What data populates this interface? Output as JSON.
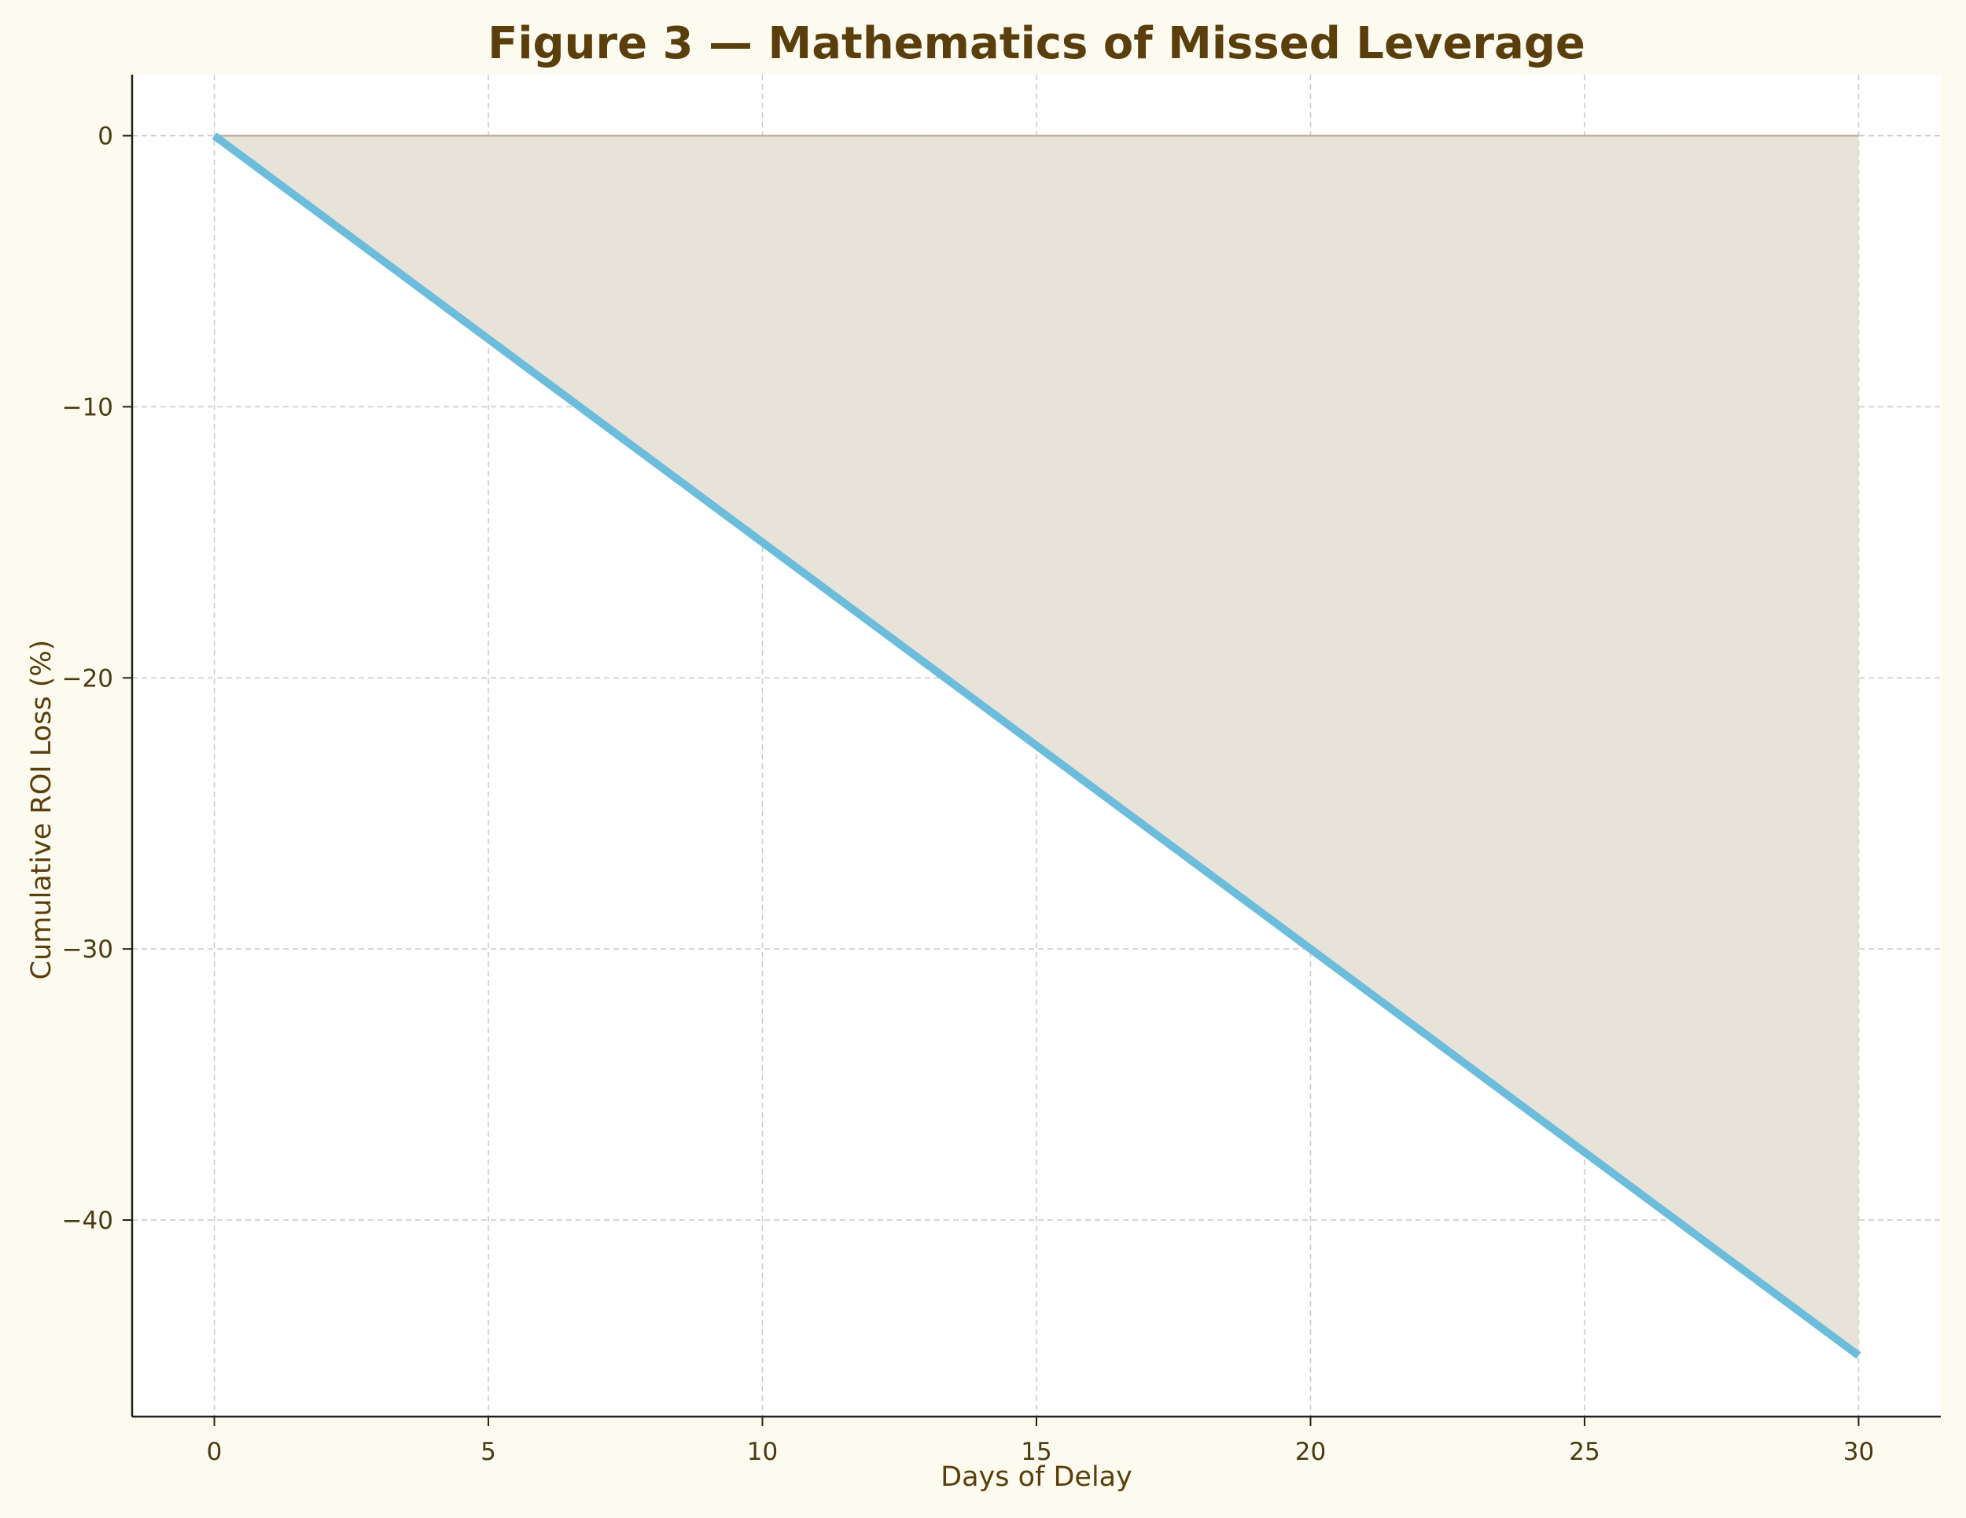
{
  "chart_data": {
    "type": "area",
    "title": "Figure 3 — Mathematics of Missed Leverage",
    "xlabel": "Days of Delay",
    "ylabel": "Cumulative ROI Loss (%)",
    "x": [
      0,
      30
    ],
    "y": [
      0,
      -45
    ],
    "xlim": [
      -1.5,
      31.5
    ],
    "ylim": [
      -47.25,
      2.25
    ],
    "xticks": [
      0,
      5,
      10,
      15,
      20,
      25,
      30
    ],
    "xtick_labels": [
      "0",
      "5",
      "10",
      "15",
      "20",
      "25",
      "30"
    ],
    "yticks": [
      0,
      -10,
      -20,
      -30,
      -40
    ],
    "ytick_labels": [
      "0",
      "−10",
      "−20",
      "−30",
      "−40"
    ],
    "fill_between": {
      "from": 0,
      "to": "series"
    },
    "grid": true,
    "grid_style": "dashed",
    "colors": {
      "line": "#6cbcdc",
      "fill": "#e6e1d6",
      "text": "#5a3f0c",
      "background": "#fdfbf0",
      "plot_background": "#ffffff",
      "grid": "#c8c8c8"
    }
  }
}
